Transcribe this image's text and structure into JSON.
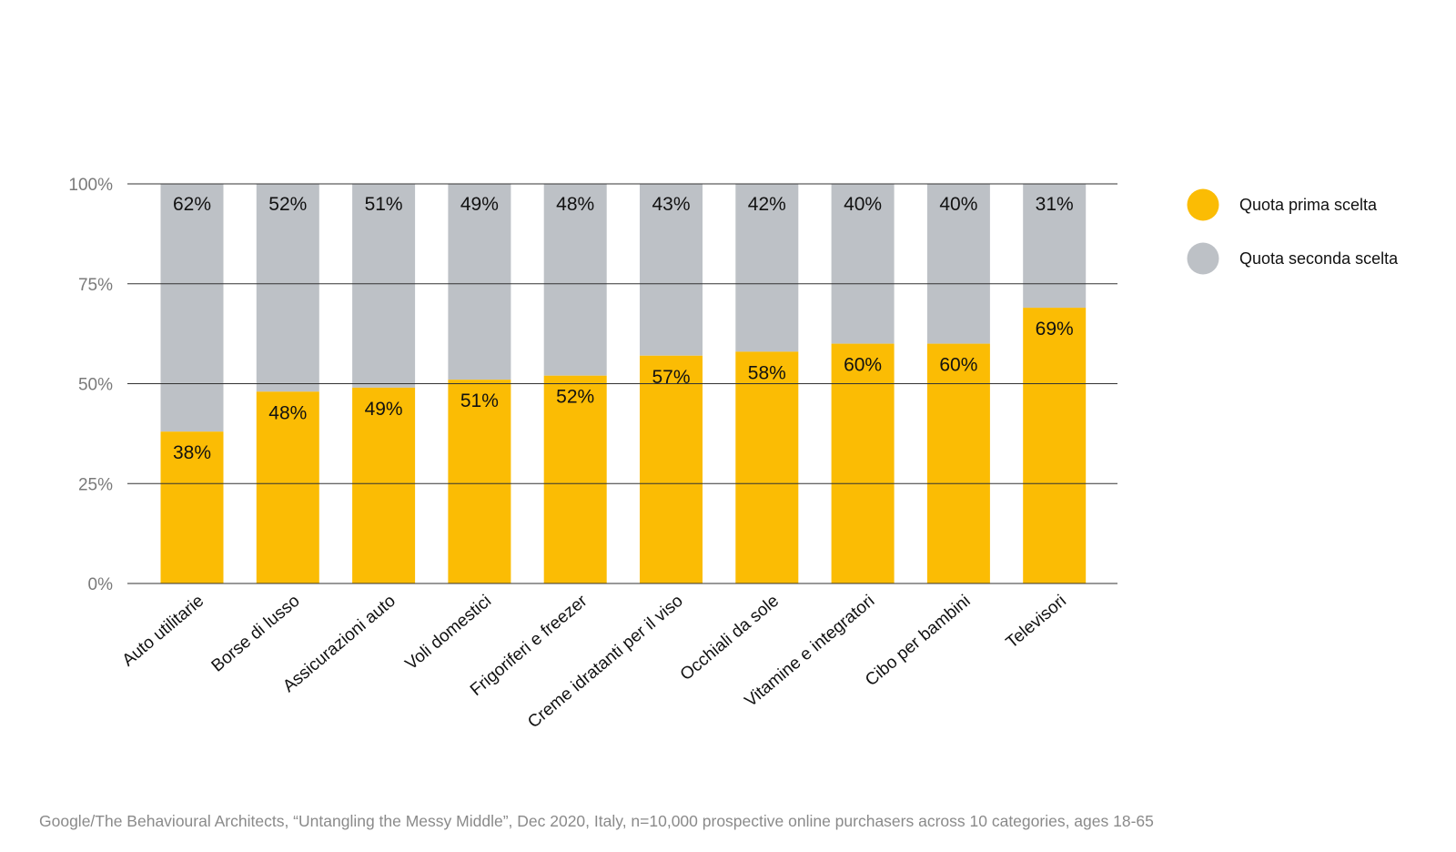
{
  "chart_data": {
    "type": "bar",
    "stacked": true,
    "percent": true,
    "categories": [
      "Auto utilitarie",
      "Borse di lusso",
      "Assicurazioni auto",
      "Voli domestici",
      "Frigoriferi e freezer",
      "Creme idratanti per il viso",
      "Occhiali da sole",
      "Vitamine e integratori",
      "Cibo per bambini",
      "Televisori"
    ],
    "series": [
      {
        "name": "Quota prima scelta",
        "color": "#FBBC04",
        "values": [
          38,
          48,
          49,
          51,
          52,
          57,
          58,
          60,
          60,
          69
        ]
      },
      {
        "name": "Quota seconda scelta",
        "color": "#BDC1C6",
        "values": [
          62,
          52,
          51,
          49,
          48,
          43,
          42,
          40,
          40,
          31
        ]
      }
    ],
    "value_labels": {
      "Quota prima scelta": [
        "38%",
        "48%",
        "49%",
        "51%",
        "52%",
        "57%",
        "58%",
        "60%",
        "60%",
        "69%"
      ],
      "Quota seconda scelta": [
        "62%",
        "52%",
        "51%",
        "49%",
        "48%",
        "43%",
        "42%",
        "40%",
        "40%",
        "31%"
      ]
    },
    "yticks": [
      0,
      25,
      50,
      75,
      100
    ],
    "ytick_labels": [
      "0%",
      "25%",
      "50%",
      "75%",
      "100%"
    ],
    "ylim": [
      0,
      100
    ],
    "grid": true,
    "legend_position": "top-right",
    "title": "",
    "xlabel": "",
    "ylabel": ""
  },
  "source_note": "Google/The Behavioural Architects, “Untangling the Messy Middle”, Dec 2020,  Italy, n=10,000 prospective online purchasers across 10 categories, ages 18-65"
}
